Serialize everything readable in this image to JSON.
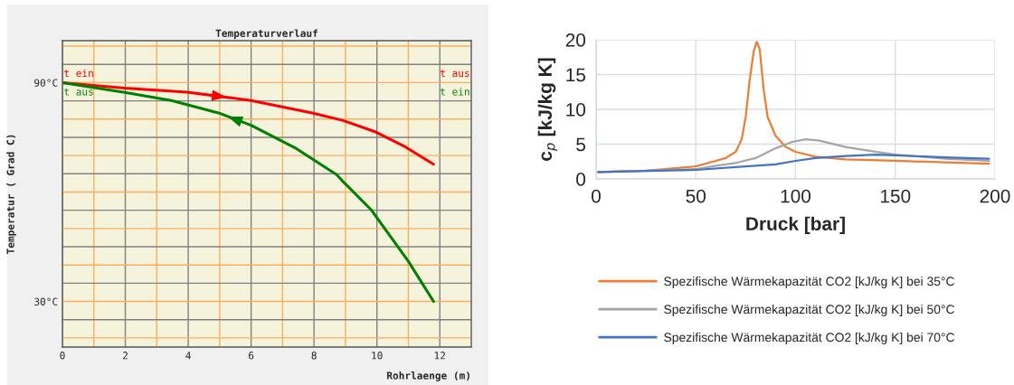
{
  "chart_data": [
    {
      "type": "line",
      "title": "Temperaturverlauf",
      "xlabel": "Rohrlaenge (m)",
      "ylabel": "Temperatur ( Grad C)",
      "xlim": [
        0,
        13
      ],
      "ylim": [
        17.5,
        101.5
      ],
      "xticks": [
        0,
        {
          "value": 1,
          "label": null
        },
        2,
        {
          "value": 3,
          "label": null
        },
        4,
        {
          "value": 5,
          "label": null
        },
        6,
        {
          "value": 7,
          "label": null
        },
        8,
        {
          "value": 9,
          "label": null
        },
        10,
        {
          "value": 11,
          "label": null
        },
        12
      ],
      "yticks": [
        {
          "value": 20,
          "label": null
        },
        {
          "value": 25,
          "label": null
        },
        {
          "value": 30,
          "label": "30°C"
        },
        {
          "value": 35,
          "label": null
        },
        {
          "value": 40,
          "label": null
        },
        {
          "value": 45,
          "label": null
        },
        {
          "value": 50,
          "label": null
        },
        {
          "value": 55,
          "label": null
        },
        {
          "value": 60,
          "label": null
        },
        {
          "value": 65,
          "label": null
        },
        {
          "value": 70,
          "label": null
        },
        {
          "value": 75,
          "label": null
        },
        {
          "value": 80,
          "label": null
        },
        {
          "value": 85,
          "label": null
        },
        {
          "value": 90,
          "label": "90°C"
        },
        {
          "value": 95,
          "label": null
        },
        {
          "value": 100,
          "label": null
        }
      ],
      "grid": true,
      "legend": false,
      "annotations": [
        "t ein",
        "t aus",
        "t aus",
        "t ein"
      ],
      "series": [
        {
          "color": "#ff0000",
          "x": [
            0,
            1.98,
            3.97,
            6.0,
            7.94,
            8.93,
            9.92,
            10.9,
            11.8
          ],
          "values": [
            90,
            88.5,
            87.4,
            85.1,
            81.7,
            79.6,
            76.6,
            72.4,
            67.6
          ]
        },
        {
          "color": "#008000",
          "x": [
            0,
            1.98,
            3.47,
            4.96,
            6.0,
            7.44,
            8.73,
            8.93,
            9.82,
            11.0,
            11.8
          ],
          "values": [
            90,
            87.3,
            85.1,
            81.7,
            78.3,
            71.9,
            64.7,
            62.8,
            55.1,
            41.0,
            30
          ]
        }
      ]
    },
    {
      "type": "line",
      "xlabel": "Druck [bar]",
      "ylabel": "c$_{p}$ [kJ/kg K]",
      "xlim": [
        0,
        200
      ],
      "ylim": [
        0,
        20
      ],
      "xticks": [
        0,
        50,
        100,
        150,
        200
      ],
      "yticks": [
        0,
        5,
        10,
        15,
        20
      ],
      "grid": true,
      "legend": "bottom",
      "series": [
        {
          "name": "Spezifische Wärmekapazität CO2 [kJ/kg K] bei 35°C",
          "color": "#ed7d31",
          "x": [
            1,
            25,
            50,
            60,
            65,
            70,
            73,
            75,
            77,
            79,
            80.5,
            82,
            84,
            86,
            90,
            95,
            100,
            110,
            125,
            150,
            175,
            197
          ],
          "values": [
            1.0,
            1.2,
            1.8,
            2.6,
            3.0,
            3.9,
            5.7,
            8.9,
            14.2,
            18.3,
            19.7,
            18.7,
            12.9,
            8.9,
            6.2,
            4.6,
            3.9,
            3.2,
            2.8,
            2.6,
            2.4,
            2.2
          ]
        },
        {
          "name": "Spezifische Wärmekapazität CO2 [kJ/kg K] bei 50°C",
          "color": "#a5a5a5",
          "x": [
            1,
            50,
            60,
            70,
            80,
            90,
            98,
            105,
            112,
            125,
            140,
            150,
            175,
            197
          ],
          "values": [
            1.0,
            1.4,
            1.9,
            2.3,
            3.0,
            4.4,
            5.3,
            5.7,
            5.5,
            4.6,
            3.9,
            3.5,
            2.9,
            2.6
          ]
        },
        {
          "name": "Spezifische Wärmekapazität CO2 [kJ/kg K] bei 70°C",
          "color": "#4472c4",
          "x": [
            1,
            50,
            75,
            90,
            100,
            110,
            125,
            140,
            150,
            175,
            197
          ],
          "values": [
            1.0,
            1.3,
            1.8,
            2.1,
            2.6,
            3.0,
            3.3,
            3.5,
            3.4,
            3.1,
            2.9
          ]
        }
      ]
    }
  ]
}
